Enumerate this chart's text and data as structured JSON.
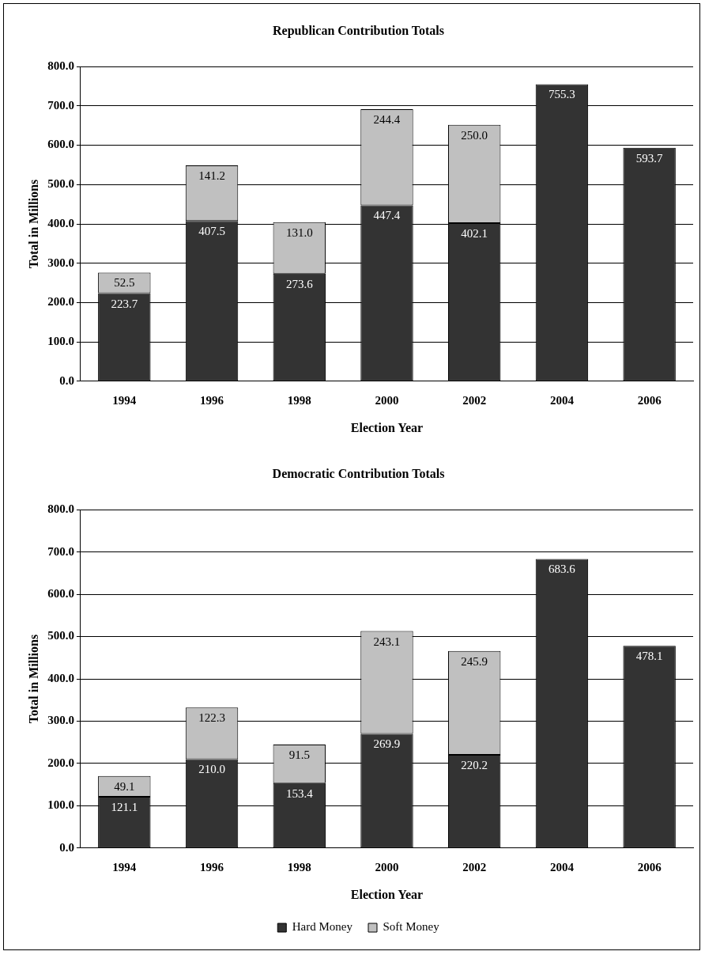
{
  "chart_data": [
    {
      "type": "bar",
      "title": "Republican Contribution Totals",
      "xlabel": "Election Year",
      "ylabel": "Total in Millions",
      "categories": [
        "1994",
        "1996",
        "1998",
        "2000",
        "2002",
        "2004",
        "2006"
      ],
      "stacked": true,
      "grid": "y",
      "legend": false,
      "ylim": [
        0,
        800
      ],
      "yticks": [
        {
          "value": 0,
          "label": "0.0"
        },
        {
          "value": 100,
          "label": "100.0"
        },
        {
          "value": 200,
          "label": "200.0"
        },
        {
          "value": 300,
          "label": "300.0"
        },
        {
          "value": 400,
          "label": "400.0"
        },
        {
          "value": 500,
          "label": "500.0"
        },
        {
          "value": 600,
          "label": "600.0"
        },
        {
          "value": 700,
          "label": "700.0"
        },
        {
          "value": 800,
          "label": "800.0"
        }
      ],
      "series": [
        {
          "color": "#333333",
          "values": [
            223.7,
            407.5,
            273.6,
            447.4,
            402.1,
            755.3,
            593.7
          ],
          "value_labels": [
            "223.7",
            "407.5",
            "273.6",
            "447.4",
            "402.1",
            "755.3",
            "593.7"
          ]
        },
        {
          "color": "#c0c0c0",
          "values": [
            52.5,
            141.2,
            131.0,
            244.4,
            250.0,
            null,
            null
          ],
          "value_labels": [
            "52.5",
            "141.2",
            "131.0",
            "244.4",
            "250.0",
            null,
            null
          ]
        }
      ]
    },
    {
      "type": "bar",
      "title": "Democratic Contribution Totals",
      "xlabel": "Election Year",
      "ylabel": "Total in Millions",
      "categories": [
        "1994",
        "1996",
        "1998",
        "2000",
        "2002",
        "2004",
        "2006"
      ],
      "stacked": true,
      "grid": "y",
      "legend": "bottom",
      "ylim": [
        0,
        800
      ],
      "yticks": [
        {
          "value": 0,
          "label": "0.0"
        },
        {
          "value": 100,
          "label": "100.0"
        },
        {
          "value": 200,
          "label": "200.0"
        },
        {
          "value": 300,
          "label": "300.0"
        },
        {
          "value": 400,
          "label": "400.0"
        },
        {
          "value": 500,
          "label": "500.0"
        },
        {
          "value": 600,
          "label": "600.0"
        },
        {
          "value": 700,
          "label": "700.0"
        },
        {
          "value": 800,
          "label": "800.0"
        }
      ],
      "series": [
        {
          "name": "Hard Money",
          "color": "#333333",
          "values": [
            121.1,
            210.0,
            153.4,
            269.9,
            220.2,
            683.6,
            478.1
          ],
          "value_labels": [
            "121.1",
            "210.0",
            "153.4",
            "269.9",
            "220.2",
            "683.6",
            "478.1"
          ]
        },
        {
          "name": "Soft Money",
          "color": "#c0c0c0",
          "values": [
            49.1,
            122.3,
            91.5,
            243.1,
            245.9,
            null,
            null
          ],
          "value_labels": [
            "49.1",
            "122.3",
            "91.5",
            "243.1",
            "245.9",
            null,
            null
          ]
        }
      ]
    }
  ]
}
